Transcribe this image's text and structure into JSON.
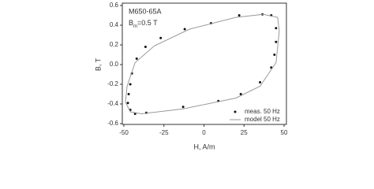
{
  "chart_data": {
    "type": "scatter",
    "xlabel": "H, A/m",
    "ylabel": "B, T",
    "annotations": [
      "M650-65A",
      [
        "B",
        "m",
        "=0.5 T"
      ]
    ],
    "xlim": [
      -50,
      50
    ],
    "ylim": [
      -0.6,
      0.6
    ],
    "xticks": [
      -50,
      -25,
      0,
      25,
      50
    ],
    "yticks": [
      -0.6,
      -0.4,
      -0.2,
      {
        "value": 0,
        "label": "0.0"
      },
      0.2,
      0.4,
      0.6
    ],
    "legend": "lower right",
    "series": [
      {
        "name": "meas. 50 Hz",
        "color": "#111111",
        "mode": "markers",
        "x": [
          36.5,
          22,
          4.4,
          -12,
          -27,
          -36.5,
          -42,
          -45,
          -46,
          -47,
          -47.5,
          -46,
          -43,
          -36,
          -13,
          9,
          23,
          35,
          42,
          44,
          45,
          45,
          42
        ],
        "values": [
          0.51,
          0.5,
          0.42,
          0.36,
          0.27,
          0.18,
          0.06,
          -0.09,
          -0.2,
          -0.3,
          -0.39,
          -0.46,
          -0.5,
          -0.49,
          -0.43,
          -0.37,
          -0.3,
          -0.18,
          -0.03,
          0.1,
          0.23,
          0.37,
          0.5
        ]
      },
      {
        "name": "model 50 Hz",
        "color": "#999999",
        "mode": "line",
        "x": [
          37,
          20,
          -9,
          -31,
          -43,
          -48,
          -49,
          -46,
          -39,
          -13,
          20,
          35,
          45,
          47,
          46,
          37
        ],
        "values": [
          0.51,
          0.48,
          0.36,
          0.19,
          0.02,
          -0.22,
          -0.38,
          -0.48,
          -0.5,
          -0.45,
          -0.34,
          -0.22,
          0.02,
          0.34,
          0.48,
          0.51
        ]
      }
    ]
  }
}
